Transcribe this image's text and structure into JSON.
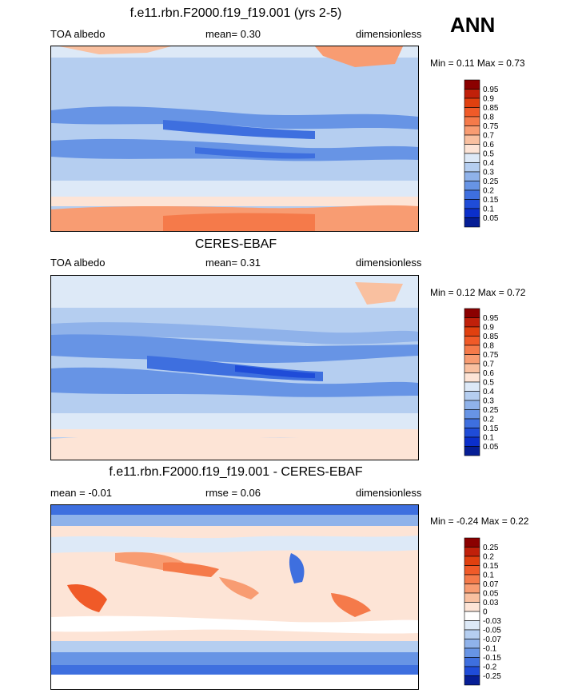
{
  "season": "ANN",
  "panels": [
    {
      "title": "f.e11.rbn.F2000.f19_f19.001 (yrs 2-5)",
      "left": "TOA albedo",
      "center": "mean=   0.30",
      "right": "dimensionless",
      "min_label": "Min =",
      "min": "0.11",
      "max_label": "Max =",
      "max": "0.73",
      "colorbar": {
        "labels": [
          "0.95",
          "0.9",
          "0.85",
          "0.8",
          "0.75",
          "0.7",
          "0.6",
          "0.5",
          "0.4",
          "0.3",
          "0.25",
          "0.2",
          "0.15",
          "0.1",
          "0.05"
        ],
        "colors": [
          "#8b0000",
          "#c0200a",
          "#e0400f",
          "#f05a28",
          "#f57a4a",
          "#f89c72",
          "#f9c0a0",
          "#fde4d6",
          "#dde9f7",
          "#b5cef0",
          "#8fb2ea",
          "#6794e5",
          "#3e6fdf",
          "#1f4cd8",
          "#0b2fcb",
          "#061e95"
        ]
      }
    },
    {
      "title": "CERES-EBAF",
      "left": "TOA albedo",
      "center": "mean=   0.31",
      "right": "dimensionless",
      "min_label": "Min =",
      "min": "0.12",
      "max_label": "Max =",
      "max": "0.72",
      "colorbar": {
        "labels": [
          "0.95",
          "0.9",
          "0.85",
          "0.8",
          "0.75",
          "0.7",
          "0.6",
          "0.5",
          "0.4",
          "0.3",
          "0.25",
          "0.2",
          "0.15",
          "0.1",
          "0.05"
        ],
        "colors": [
          "#8b0000",
          "#c0200a",
          "#e0400f",
          "#f05a28",
          "#f57a4a",
          "#f89c72",
          "#f9c0a0",
          "#fde4d6",
          "#dde9f7",
          "#b5cef0",
          "#8fb2ea",
          "#6794e5",
          "#3e6fdf",
          "#1f4cd8",
          "#0b2fcb",
          "#061e95"
        ]
      }
    },
    {
      "title": "f.e11.rbn.F2000.f19_f19.001 - CERES-EBAF",
      "left": "mean =  -0.01",
      "center": "rmse =  0.06",
      "right": "dimensionless",
      "min_label": "Min =",
      "min": "-0.24",
      "max_label": "Max =",
      "max": "0.22",
      "colorbar": {
        "labels": [
          "0.25",
          "0.2",
          "0.15",
          "0.1",
          "0.07",
          "0.05",
          "0.03",
          "0",
          "-0.03",
          "-0.05",
          "-0.07",
          "-0.1",
          "-0.15",
          "-0.2",
          "-0.25"
        ],
        "colors": [
          "#8b0000",
          "#c0200a",
          "#e0400f",
          "#f05a28",
          "#f57a4a",
          "#f89c72",
          "#f9c0a0",
          "#fde4d6",
          "#ffffff",
          "#dde9f7",
          "#b5cef0",
          "#8fb2ea",
          "#6794e5",
          "#3e6fdf",
          "#1f4cd8",
          "#061e95"
        ]
      }
    }
  ]
}
